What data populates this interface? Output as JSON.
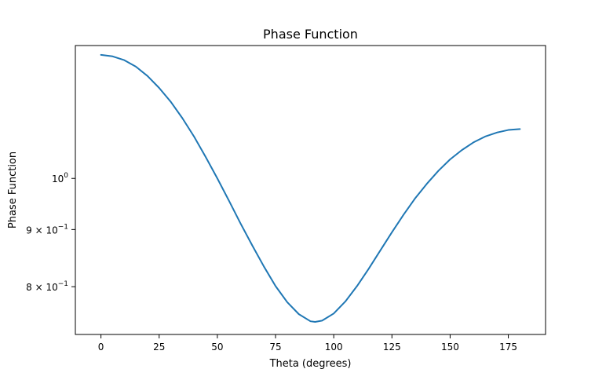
{
  "chart_data": {
    "type": "line",
    "title": "Phase Function",
    "xlabel": "Theta (degrees)",
    "ylabel": "Phase Function",
    "xlim": [
      -11,
      191
    ],
    "ylim": [
      0.725,
      1.315
    ],
    "yscale": "log",
    "grid": false,
    "x_ticks": [
      {
        "value": 0,
        "label": "0"
      },
      {
        "value": 25,
        "label": "25"
      },
      {
        "value": 50,
        "label": "50"
      },
      {
        "value": 75,
        "label": "75"
      },
      {
        "value": 100,
        "label": "100"
      },
      {
        "value": 125,
        "label": "125"
      },
      {
        "value": 150,
        "label": "150"
      },
      {
        "value": 175,
        "label": "175"
      }
    ],
    "y_ticks": [
      {
        "value": 0.8,
        "base": "8 × 10",
        "exp": "−1"
      },
      {
        "value": 0.9,
        "base": "9 × 10",
        "exp": "−1"
      },
      {
        "value": 1.0,
        "base": "10",
        "exp": "0"
      }
    ],
    "series": [
      {
        "color": "#1f77b4",
        "x": [
          0,
          5,
          10,
          15,
          20,
          25,
          30,
          35,
          40,
          45,
          50,
          55,
          60,
          65,
          70,
          75,
          80,
          85,
          90,
          92,
          95,
          100,
          105,
          110,
          115,
          120,
          125,
          130,
          135,
          140,
          145,
          150,
          155,
          160,
          165,
          170,
          175,
          180
        ],
        "y": [
          1.29,
          1.286,
          1.276,
          1.259,
          1.235,
          1.205,
          1.171,
          1.132,
          1.09,
          1.045,
          1.0,
          0.955,
          0.911,
          0.871,
          0.834,
          0.801,
          0.775,
          0.756,
          0.745,
          0.744,
          0.746,
          0.757,
          0.776,
          0.801,
          0.83,
          0.862,
          0.895,
          0.928,
          0.96,
          0.989,
          1.016,
          1.04,
          1.06,
          1.077,
          1.09,
          1.099,
          1.105,
          1.107
        ]
      }
    ]
  }
}
